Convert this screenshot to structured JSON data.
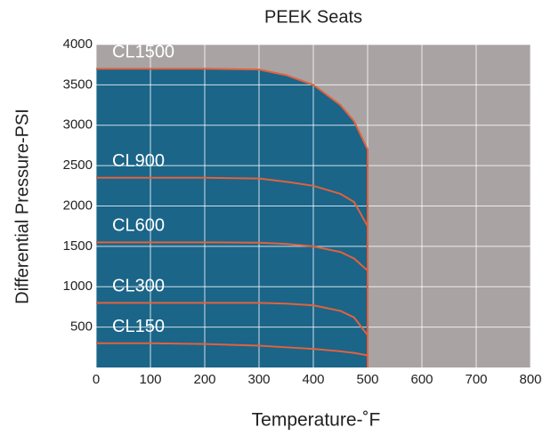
{
  "chart_data": {
    "type": "line",
    "title": "PEEK Seats",
    "x_label": "Temperature-˚F",
    "y_label": "Differential Pressure-PSI",
    "x": [
      0,
      100,
      200,
      300,
      350,
      400,
      450,
      475,
      500
    ],
    "series": [
      {
        "name": "CL1500",
        "color": "#e2623c",
        "values": [
          3700,
          3700,
          3700,
          3690,
          3620,
          3500,
          3250,
          3050,
          2700
        ]
      },
      {
        "name": "CL900",
        "color": "#e2623c",
        "values": [
          2350,
          2350,
          2350,
          2340,
          2300,
          2250,
          2150,
          2050,
          1750
        ]
      },
      {
        "name": "CL600",
        "color": "#e2623c",
        "values": [
          1550,
          1550,
          1550,
          1545,
          1530,
          1500,
          1430,
          1350,
          1200
        ]
      },
      {
        "name": "CL300",
        "color": "#e2623c",
        "values": [
          800,
          800,
          800,
          800,
          790,
          770,
          700,
          620,
          400
        ]
      },
      {
        "name": "CL150",
        "color": "#e2623c",
        "values": [
          300,
          300,
          290,
          270,
          250,
          230,
          200,
          180,
          150
        ]
      }
    ],
    "area_color": "#1b6589",
    "background": "#a9a3a3",
    "xlim": [
      0,
      800
    ],
    "xticks": [
      0,
      100,
      200,
      300,
      400,
      500,
      600,
      700,
      800
    ],
    "ylim": [
      0,
      4000
    ],
    "yticks": [
      500,
      1000,
      1500,
      2000,
      2500,
      3000,
      3500,
      4000
    ],
    "grid": true
  }
}
